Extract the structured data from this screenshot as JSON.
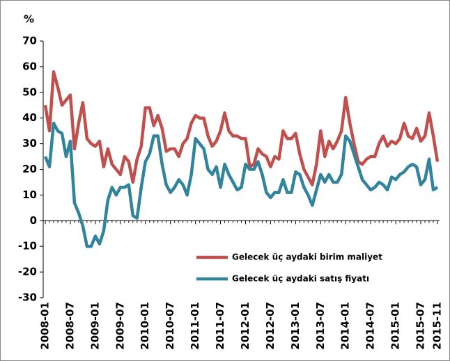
{
  "chart_data": {
    "type": "line",
    "y_unit_label": "%",
    "categories": [
      "2008-01",
      null,
      null,
      null,
      null,
      null,
      "2008-07",
      null,
      null,
      null,
      null,
      null,
      "2009-01",
      null,
      null,
      null,
      null,
      null,
      "2009-07",
      null,
      null,
      null,
      null,
      null,
      "2010-01",
      null,
      null,
      null,
      null,
      null,
      "2010-07",
      null,
      null,
      null,
      null,
      null,
      "2011-01",
      null,
      null,
      null,
      null,
      null,
      "2011-07",
      null,
      null,
      null,
      null,
      null,
      "2012-01",
      null,
      null,
      null,
      null,
      null,
      "2012-07",
      null,
      null,
      null,
      null,
      null,
      "2013-01",
      null,
      null,
      null,
      null,
      null,
      "2013-07",
      null,
      null,
      null,
      null,
      null,
      "2014-01",
      null,
      null,
      null,
      null,
      null,
      "2014-07",
      null,
      null,
      null,
      null,
      null,
      "2015-01",
      null,
      null,
      null,
      null,
      null,
      "2015-07",
      null,
      null,
      null,
      "2015-11"
    ],
    "series": [
      {
        "name": "Gelecek üç aydaki birim maliyet",
        "color": "#c0504d",
        "values": [
          45,
          35,
          58,
          52,
          45,
          47,
          49,
          28,
          38,
          46,
          32,
          30,
          29,
          31,
          21,
          28,
          22,
          20,
          18,
          25,
          23,
          15,
          24,
          29,
          44,
          44,
          37,
          41,
          36,
          27,
          28,
          28,
          25,
          30,
          32,
          38,
          41,
          40,
          40,
          33,
          29,
          31,
          35,
          42,
          35,
          33,
          33,
          32,
          32,
          21,
          22,
          28,
          26,
          25,
          21,
          25,
          24,
          35,
          32,
          32,
          34,
          26,
          20,
          17,
          14,
          22,
          35,
          25,
          31,
          28,
          31,
          35,
          48,
          38,
          30,
          23,
          22,
          24,
          25,
          25,
          30,
          33,
          29,
          31,
          30,
          32,
          38,
          33,
          32,
          36,
          31,
          33,
          42,
          33,
          23
        ]
      },
      {
        "name": "Gelecek üç aydaki satış fiyatı",
        "color": "#31849b",
        "values": [
          25,
          21,
          38,
          35,
          34,
          25,
          31,
          7,
          3,
          -2,
          -10,
          -10,
          -6,
          -9,
          -4,
          8,
          13,
          10,
          13,
          13,
          14,
          2,
          1,
          13,
          23,
          26,
          33,
          33,
          22,
          14,
          11,
          13,
          16,
          14,
          10,
          18,
          32,
          30,
          28,
          20,
          18,
          21,
          13,
          22,
          18,
          15,
          12,
          13,
          22,
          20,
          20,
          23,
          18,
          11,
          9,
          11,
          11,
          16,
          11,
          11,
          19,
          18,
          13,
          10,
          6,
          12,
          18,
          15,
          18,
          15,
          15,
          18,
          33,
          31,
          26,
          21,
          16,
          14,
          12,
          13,
          15,
          14,
          12,
          17,
          16,
          18,
          19,
          21,
          22,
          21,
          14,
          16,
          24,
          12,
          13
        ]
      }
    ],
    "ylim": [
      -30,
      70
    ],
    "yticks": [
      -30,
      -20,
      -10,
      0,
      10,
      20,
      30,
      40,
      50,
      60,
      70
    ],
    "legend": "lower-center"
  }
}
